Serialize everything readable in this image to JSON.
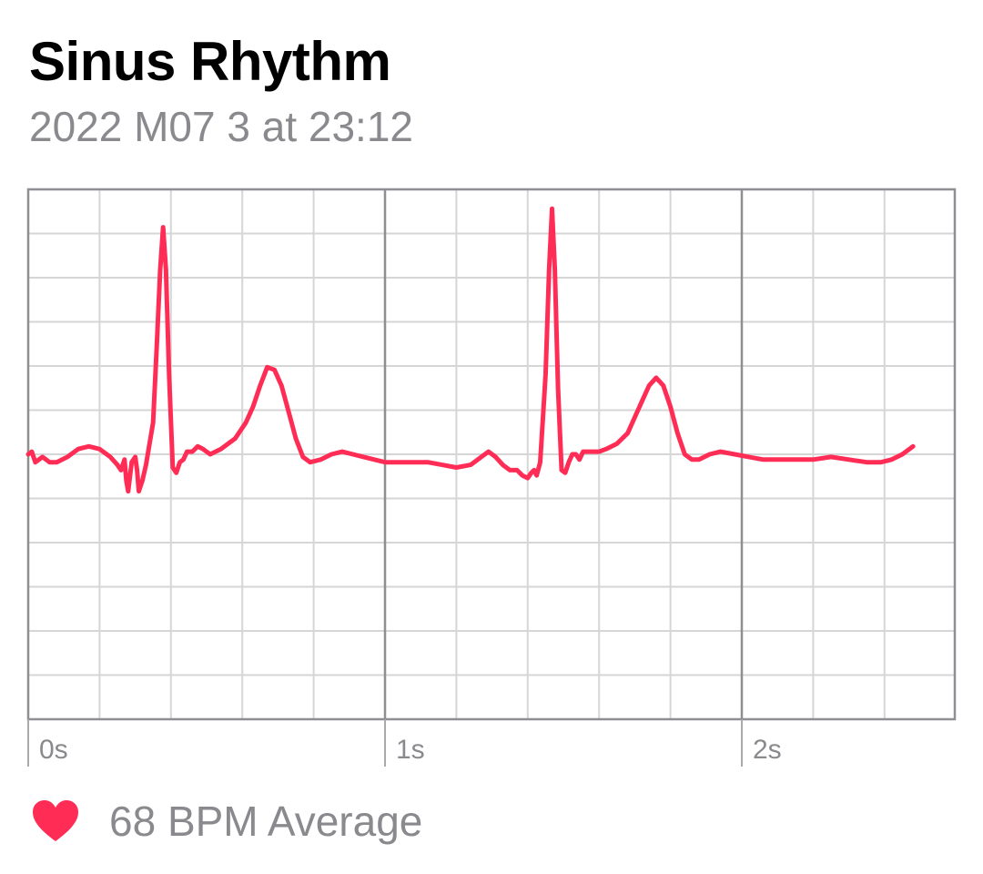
{
  "header": {
    "title": "Sinus Rhythm",
    "date": "2022 M07 3 at 23:12"
  },
  "footer": {
    "icon": "heart-icon",
    "bpm_text": "68 BPM Average"
  },
  "colors": {
    "trace": "#ff2d55",
    "heart": "#ff2d55",
    "grid_major": "#8e8e93",
    "grid_minor": "#d6d6d6",
    "secondary_text": "#8a8a8e"
  },
  "chart_data": {
    "type": "line",
    "title": "",
    "xlabel": "",
    "ylabel": "",
    "x_ticks": [
      {
        "value": 0,
        "label": "0s"
      },
      {
        "value": 1,
        "label": "1s"
      },
      {
        "value": 2,
        "label": "2s"
      }
    ],
    "xlim": [
      0,
      2.6
    ],
    "ylim": [
      -0.9,
      1.1
    ],
    "grid": true,
    "series": [
      {
        "values": [
          [
            0.0,
            0.0
          ],
          [
            0.01,
            0.01
          ],
          [
            0.02,
            -0.03
          ],
          [
            0.04,
            -0.01
          ],
          [
            0.06,
            -0.03
          ],
          [
            0.08,
            -0.03
          ],
          [
            0.11,
            -0.01
          ],
          [
            0.14,
            0.02
          ],
          [
            0.17,
            0.03
          ],
          [
            0.2,
            0.02
          ],
          [
            0.23,
            -0.01
          ],
          [
            0.25,
            -0.04
          ],
          [
            0.26,
            -0.06
          ],
          [
            0.27,
            -0.02
          ],
          [
            0.275,
            -0.1
          ],
          [
            0.28,
            -0.14
          ],
          [
            0.29,
            -0.03
          ],
          [
            0.3,
            -0.01
          ],
          [
            0.305,
            -0.06
          ],
          [
            0.31,
            -0.14
          ],
          [
            0.32,
            -0.1
          ],
          [
            0.33,
            -0.04
          ],
          [
            0.34,
            0.04
          ],
          [
            0.35,
            0.12
          ],
          [
            0.36,
            0.4
          ],
          [
            0.37,
            0.7
          ],
          [
            0.378,
            0.86
          ],
          [
            0.386,
            0.7
          ],
          [
            0.395,
            0.3
          ],
          [
            0.405,
            -0.05
          ],
          [
            0.415,
            -0.07
          ],
          [
            0.425,
            -0.03
          ],
          [
            0.435,
            -0.02
          ],
          [
            0.445,
            0.01
          ],
          [
            0.46,
            0.01
          ],
          [
            0.475,
            0.03
          ],
          [
            0.49,
            0.02
          ],
          [
            0.51,
            0.0
          ],
          [
            0.54,
            0.02
          ],
          [
            0.58,
            0.06
          ],
          [
            0.61,
            0.12
          ],
          [
            0.63,
            0.18
          ],
          [
            0.65,
            0.26
          ],
          [
            0.67,
            0.33
          ],
          [
            0.69,
            0.32
          ],
          [
            0.71,
            0.26
          ],
          [
            0.73,
            0.16
          ],
          [
            0.75,
            0.06
          ],
          [
            0.77,
            -0.01
          ],
          [
            0.79,
            -0.03
          ],
          [
            0.82,
            -0.02
          ],
          [
            0.85,
            0.0
          ],
          [
            0.88,
            0.01
          ],
          [
            0.91,
            0.0
          ],
          [
            0.94,
            -0.01
          ],
          [
            0.97,
            -0.02
          ],
          [
            1.0,
            -0.03
          ],
          [
            1.04,
            -0.03
          ],
          [
            1.08,
            -0.03
          ],
          [
            1.12,
            -0.03
          ],
          [
            1.16,
            -0.04
          ],
          [
            1.2,
            -0.05
          ],
          [
            1.24,
            -0.04
          ],
          [
            1.27,
            -0.01
          ],
          [
            1.29,
            0.01
          ],
          [
            1.31,
            -0.01
          ],
          [
            1.33,
            -0.04
          ],
          [
            1.35,
            -0.06
          ],
          [
            1.37,
            -0.06
          ],
          [
            1.385,
            -0.08
          ],
          [
            1.4,
            -0.09
          ],
          [
            1.41,
            -0.07
          ],
          [
            1.418,
            -0.06
          ],
          [
            1.425,
            -0.08
          ],
          [
            1.435,
            -0.03
          ],
          [
            1.45,
            0.3
          ],
          [
            1.46,
            0.7
          ],
          [
            1.468,
            0.93
          ],
          [
            1.476,
            0.7
          ],
          [
            1.485,
            0.25
          ],
          [
            1.495,
            -0.06
          ],
          [
            1.505,
            -0.07
          ],
          [
            1.515,
            -0.03
          ],
          [
            1.525,
            0.0
          ],
          [
            1.535,
            0.0
          ],
          [
            1.545,
            -0.02
          ],
          [
            1.555,
            0.01
          ],
          [
            1.565,
            0.01
          ],
          [
            1.58,
            0.01
          ],
          [
            1.6,
            0.01
          ],
          [
            1.62,
            0.02
          ],
          [
            1.65,
            0.04
          ],
          [
            1.68,
            0.08
          ],
          [
            1.7,
            0.14
          ],
          [
            1.72,
            0.2
          ],
          [
            1.74,
            0.26
          ],
          [
            1.76,
            0.29
          ],
          [
            1.78,
            0.26
          ],
          [
            1.8,
            0.18
          ],
          [
            1.82,
            0.08
          ],
          [
            1.84,
            0.0
          ],
          [
            1.86,
            -0.02
          ],
          [
            1.88,
            -0.02
          ],
          [
            1.91,
            0.0
          ],
          [
            1.94,
            0.01
          ],
          [
            1.98,
            0.0
          ],
          [
            2.02,
            -0.01
          ],
          [
            2.06,
            -0.02
          ],
          [
            2.1,
            -0.02
          ],
          [
            2.15,
            -0.02
          ],
          [
            2.2,
            -0.02
          ],
          [
            2.25,
            -0.01
          ],
          [
            2.3,
            -0.02
          ],
          [
            2.35,
            -0.03
          ],
          [
            2.39,
            -0.03
          ],
          [
            2.42,
            -0.02
          ],
          [
            2.45,
            0.0
          ],
          [
            2.48,
            0.03
          ]
        ]
      }
    ]
  }
}
